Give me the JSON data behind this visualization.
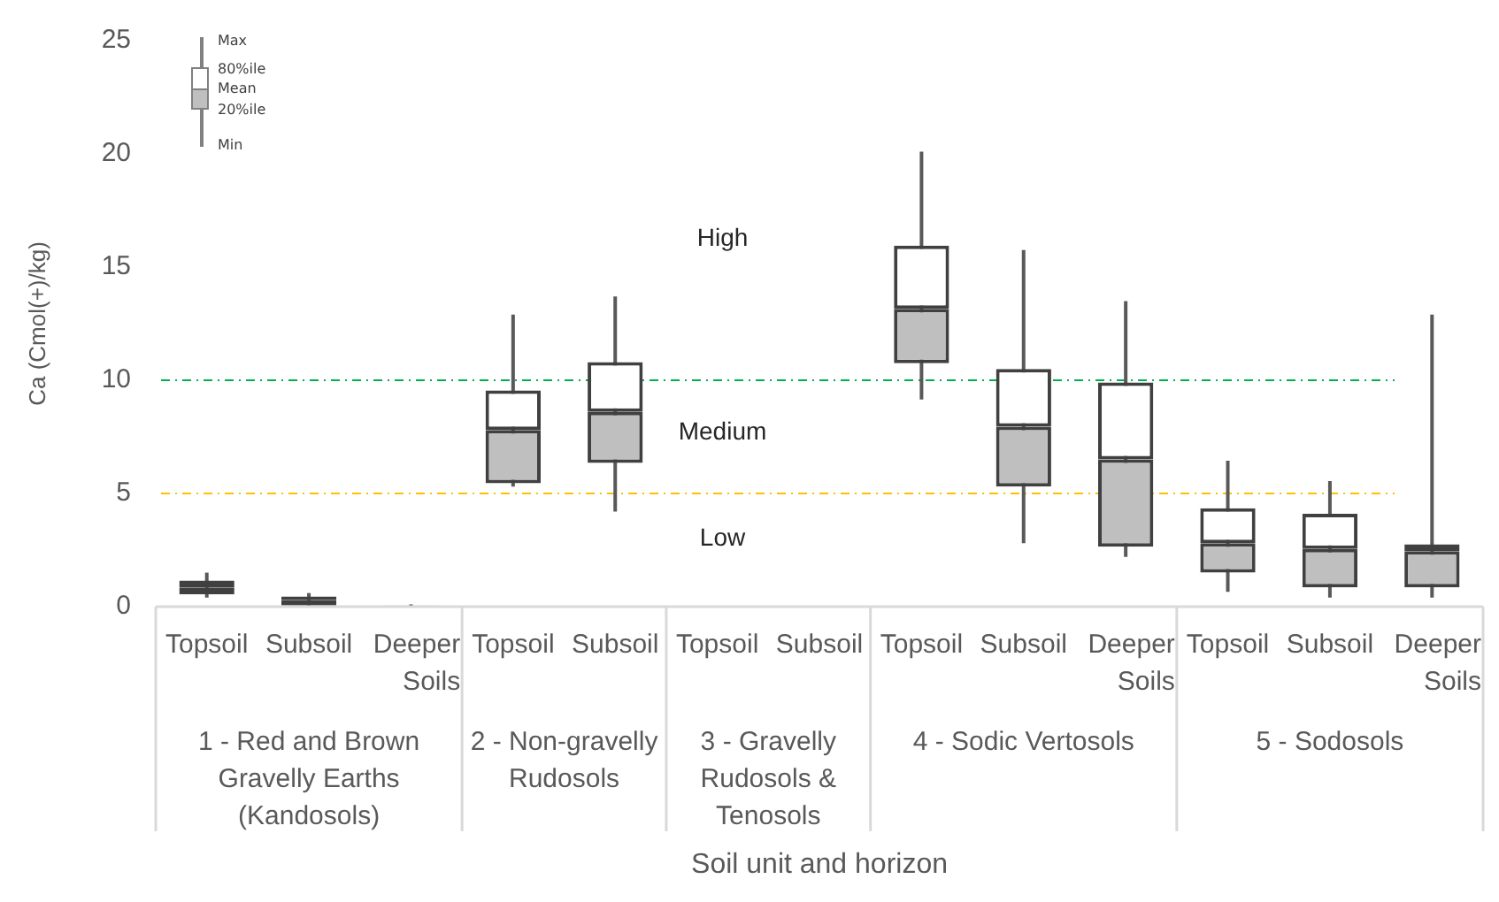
{
  "chart_data": {
    "type": "box",
    "ylabel": "Ca (Cmol(+)/kg)",
    "categories": [
      "Topsoil",
      "Subsoil",
      "Deeper Soils",
      "Topsoil",
      "Subsoil",
      "Topsoil",
      "Subsoil",
      "Topsoil",
      "Subsoil",
      "Deeper Soils",
      "Topsoil",
      "Subsoil",
      "Deeper Soils"
    ],
    "boxes": [
      {
        "low": 0.4,
        "q1": 0.55,
        "median": 0.85,
        "q3": 1.15,
        "high": 1.5
      },
      {
        "low": 0,
        "q1": 0.05,
        "median": 0.3,
        "q3": 0.45,
        "high": 0.6
      },
      {
        "low": 0,
        "q1": 0,
        "median": 0.02,
        "q3": 0.05,
        "high": 0.1
      },
      {
        "low": 5.3,
        "q1": 5.45,
        "median": 7.8,
        "q3": 9.55,
        "high": 12.9
      },
      {
        "low": 4.2,
        "q1": 6.35,
        "median": 8.6,
        "q3": 10.8,
        "high": 13.7
      },
      null,
      null,
      {
        "low": 9.15,
        "q1": 10.75,
        "median": 13.15,
        "q3": 15.95,
        "high": 20.1
      },
      {
        "low": 2.8,
        "q1": 5.3,
        "median": 7.95,
        "q3": 10.5,
        "high": 15.75
      },
      {
        "low": 2.2,
        "q1": 2.65,
        "median": 6.5,
        "q3": 9.9,
        "high": 13.5
      },
      {
        "low": 0.65,
        "q1": 1.5,
        "median": 2.8,
        "q3": 4.35,
        "high": 6.45
      },
      {
        "low": 0.4,
        "q1": 0.85,
        "median": 2.55,
        "q3": 4.1,
        "high": 5.55
      },
      {
        "low": 0.4,
        "q1": 0.85,
        "median": 2.45,
        "q3": 2.75,
        "high": 12.9
      }
    ],
    "ylim": [
      0,
      25
    ],
    "yticks": [
      0,
      5,
      10,
      15,
      20,
      25
    ],
    "grid": false,
    "ref_lines": [
      {
        "axis": "y",
        "value": 10,
        "color": "#00b050",
        "line_style": "dashed"
      },
      {
        "axis": "y",
        "value": 5,
        "color": "#ffc000",
        "line_style": "dashed"
      }
    ],
    "annotations": [
      "1 - Red and Brown Gravelly Earths (Kandosols)",
      "2 - Non-gravelly Rudosols",
      "3 - Gravelly Rudosols & Tenosols",
      "4 - Sodic Vertosols",
      "5 - Sodosols",
      "Max",
      "80%ile",
      "Mean",
      "20%ile",
      "Min",
      "High",
      "Medium",
      "Low",
      "Soil unit and horizon"
    ]
  }
}
